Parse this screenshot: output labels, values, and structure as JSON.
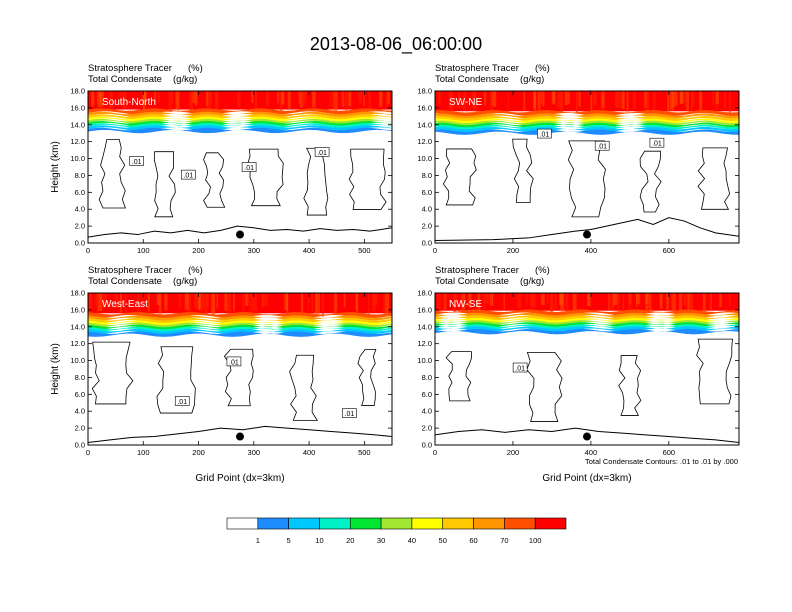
{
  "title": "2013-08-06_06:00:00",
  "palette": {
    "levels": [
      "1",
      "5",
      "10",
      "20",
      "30",
      "40",
      "50",
      "60",
      "70",
      "100"
    ],
    "colors": [
      "#ffffff",
      "#1e8cff",
      "#00c8ff",
      "#00f0c8",
      "#00e632",
      "#a0e632",
      "#ffff00",
      "#ffc800",
      "#ff9600",
      "#ff5000",
      "#ff0000"
    ]
  },
  "panels": [
    {
      "label": "South-North",
      "subtitle_left_1": "Stratosphere Tracer",
      "subtitle_right_1": "(%)",
      "subtitle_left_2": "Total Condensate",
      "subtitle_right_2": "(g/kg)",
      "ylabel": "Height (km)",
      "xlabel": "",
      "xlim": [
        0,
        550
      ],
      "xticks": [
        "0",
        "100",
        "200",
        "300",
        "400",
        "500"
      ],
      "ylim": [
        0,
        18
      ],
      "yticks": [
        "0.0",
        "2.0",
        "4.0",
        "6.0",
        "8.0",
        "10.0",
        "12.0",
        "14.0",
        "16.0",
        "18.0"
      ],
      "tropopause_km": 14.2,
      "contour_labels": [
        ".01",
        ".01",
        ".01",
        ".01"
      ],
      "marker": {
        "x": 275,
        "y": 1.0
      },
      "terrain": [
        [
          0,
          0.7
        ],
        [
          30,
          1.0
        ],
        [
          60,
          1.2
        ],
        [
          90,
          1.0
        ],
        [
          120,
          1.4
        ],
        [
          150,
          1.2
        ],
        [
          180,
          1.5
        ],
        [
          210,
          1.2
        ],
        [
          240,
          1.5
        ],
        [
          270,
          2.0
        ],
        [
          300,
          1.8
        ],
        [
          330,
          1.5
        ],
        [
          360,
          1.6
        ],
        [
          390,
          1.4
        ],
        [
          420,
          1.7
        ],
        [
          450,
          1.5
        ],
        [
          480,
          1.6
        ],
        [
          510,
          1.4
        ],
        [
          550,
          1.8
        ]
      ]
    },
    {
      "label": "SW-NE",
      "subtitle_left_1": "Stratosphere Tracer",
      "subtitle_right_1": "(%)",
      "subtitle_left_2": "Total Condensate",
      "subtitle_right_2": "(g/kg)",
      "ylabel": "",
      "xlabel": "",
      "xlim": [
        0,
        780
      ],
      "xticks": [
        "0",
        "200",
        "400",
        "600"
      ],
      "ylim": [
        0,
        18
      ],
      "yticks": [
        "0.0",
        "2.0",
        "4.0",
        "6.0",
        "8.0",
        "10.0",
        "12.0",
        "14.0",
        "16.0",
        "18.0"
      ],
      "tropopause_km": 14.0,
      "contour_labels": [
        ".01",
        ".01",
        ".01"
      ],
      "marker": {
        "x": 390,
        "y": 1.0
      },
      "terrain": [
        [
          0,
          0.3
        ],
        [
          150,
          0.4
        ],
        [
          240,
          0.6
        ],
        [
          300,
          1.0
        ],
        [
          360,
          1.4
        ],
        [
          400,
          1.6
        ],
        [
          440,
          2.0
        ],
        [
          480,
          2.4
        ],
        [
          520,
          2.8
        ],
        [
          560,
          2.2
        ],
        [
          600,
          3.0
        ],
        [
          640,
          2.6
        ],
        [
          680,
          1.8
        ],
        [
          720,
          1.2
        ],
        [
          780,
          0.8
        ]
      ]
    },
    {
      "label": "West-East",
      "subtitle_left_1": "Stratosphere Tracer",
      "subtitle_right_1": "(%)",
      "subtitle_left_2": "Total Condensate",
      "subtitle_right_2": "(g/kg)",
      "ylabel": "Height (km)",
      "xlabel": "Grid Point (dx=3km)",
      "xlim": [
        0,
        550
      ],
      "xticks": [
        "0",
        "100",
        "200",
        "300",
        "400",
        "500"
      ],
      "ylim": [
        0,
        18
      ],
      "yticks": [
        "0.0",
        "2.0",
        "4.0",
        "6.0",
        "8.0",
        "10.0",
        "12.0",
        "14.0",
        "16.0",
        "18.0"
      ],
      "tropopause_km": 14.0,
      "contour_labels": [
        ".01",
        ".01",
        ".01"
      ],
      "marker": {
        "x": 275,
        "y": 1.0
      },
      "terrain": [
        [
          0,
          0.3
        ],
        [
          40,
          0.6
        ],
        [
          80,
          0.9
        ],
        [
          120,
          1.0
        ],
        [
          160,
          1.3
        ],
        [
          200,
          1.6
        ],
        [
          240,
          2.0
        ],
        [
          280,
          1.8
        ],
        [
          320,
          2.2
        ],
        [
          360,
          2.0
        ],
        [
          400,
          1.8
        ],
        [
          440,
          1.6
        ],
        [
          480,
          1.4
        ],
        [
          520,
          1.2
        ],
        [
          550,
          1.0
        ]
      ]
    },
    {
      "label": "NW-SE",
      "subtitle_left_1": "Stratosphere Tracer",
      "subtitle_right_1": "(%)",
      "subtitle_left_2": "Total Condensate",
      "subtitle_right_2": "(g/kg)",
      "ylabel": "",
      "xlabel": "Grid Point (dx=3km)",
      "xlim": [
        0,
        780
      ],
      "xticks": [
        "0",
        "200",
        "400",
        "600"
      ],
      "ylim": [
        0,
        18
      ],
      "yticks": [
        "0.0",
        "2.0",
        "4.0",
        "6.0",
        "8.0",
        "10.0",
        "12.0",
        "14.0",
        "16.0",
        "18.0"
      ],
      "tropopause_km": 14.3,
      "contour_labels": [
        ".01"
      ],
      "marker": {
        "x": 390,
        "y": 1.0
      },
      "terrain": [
        [
          0,
          1.2
        ],
        [
          60,
          1.6
        ],
        [
          120,
          1.8
        ],
        [
          180,
          1.5
        ],
        [
          240,
          1.8
        ],
        [
          300,
          1.6
        ],
        [
          360,
          2.0
        ],
        [
          420,
          1.6
        ],
        [
          480,
          1.4
        ],
        [
          540,
          1.2
        ],
        [
          600,
          1.0
        ],
        [
          660,
          0.8
        ],
        [
          720,
          0.6
        ],
        [
          780,
          0.3
        ]
      ]
    }
  ],
  "contour_note": "Total Condensate Contours: .01 to .01 by .000",
  "chart_data": {
    "type": "heatmap",
    "title": "2013-08-06_06:00:00",
    "fields": [
      "Stratosphere Tracer (%)",
      "Total Condensate (g/kg) contours"
    ],
    "panels": [
      "South-North",
      "SW-NE",
      "West-East",
      "NW-SE"
    ],
    "xlabel": "Grid Point (dx=3km)",
    "ylabel": "Height (km)",
    "ylim": [
      0,
      18
    ],
    "colorbar_levels": [
      1,
      5,
      10,
      20,
      30,
      40,
      50,
      60,
      70,
      100
    ],
    "contour_levels": [
      0.01
    ]
  }
}
